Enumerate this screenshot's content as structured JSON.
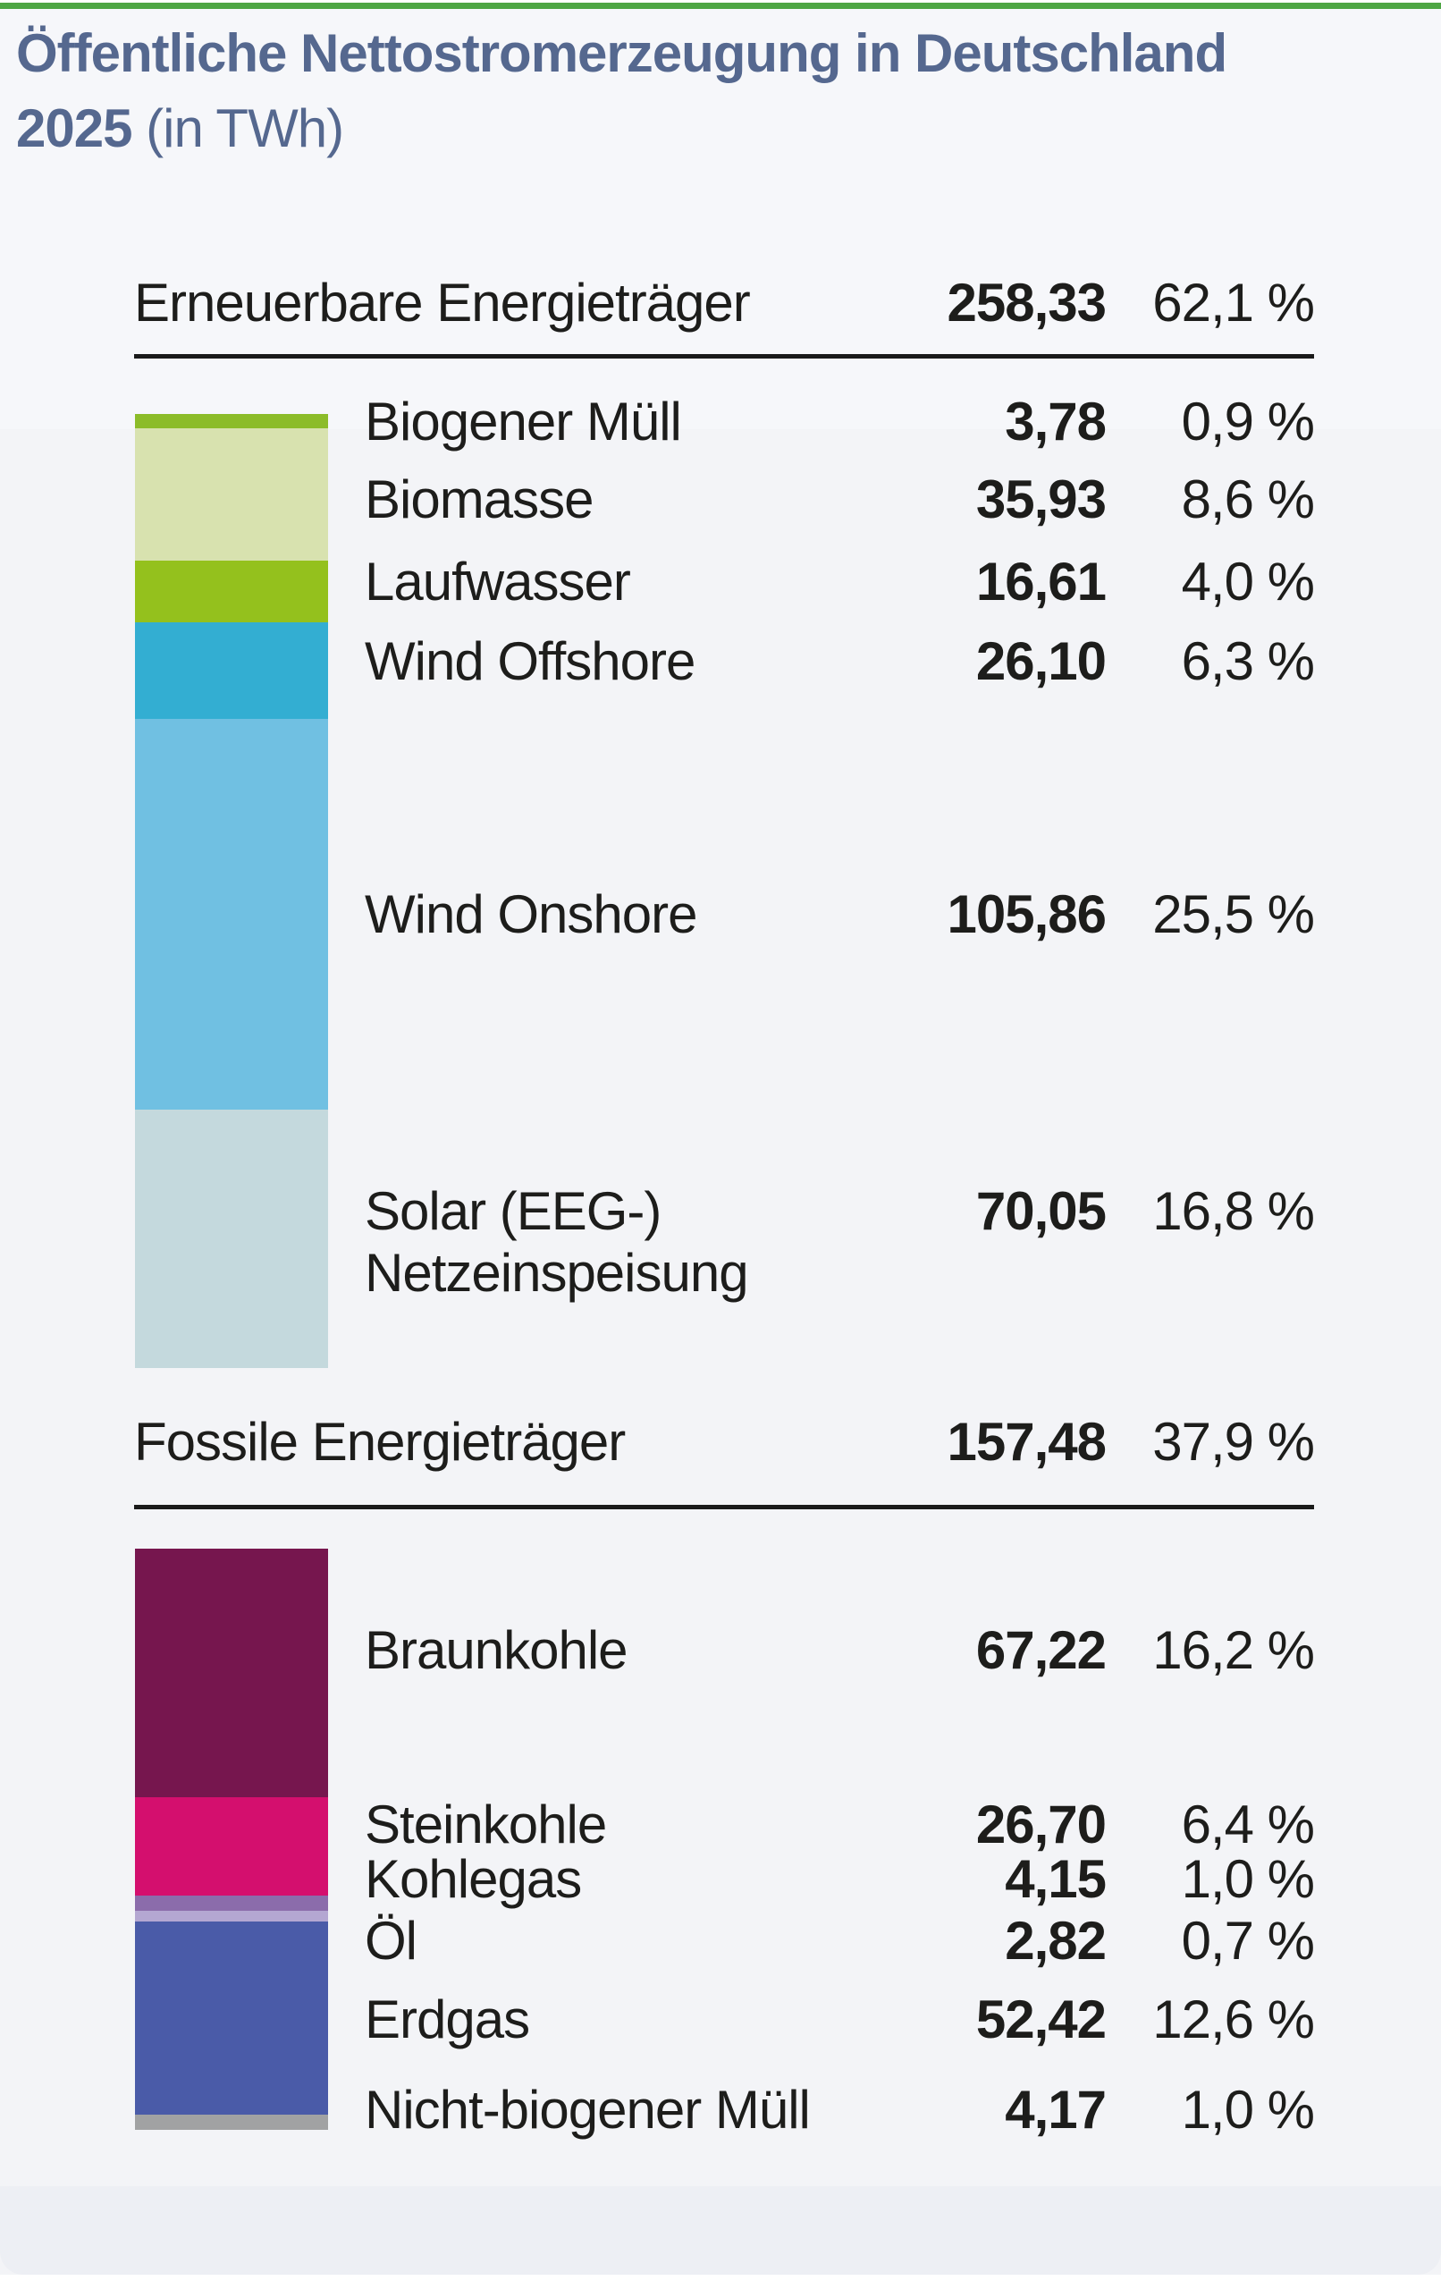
{
  "title": {
    "line1": "Öffentliche Nettostromerzeugung in Deutschland",
    "line2_bold": "2025",
    "line2_light": " (in TWh)"
  },
  "colors": {
    "accent_green": "#4ea644",
    "title_blue": "#55688f",
    "text": "#1d1d1b",
    "rule": "#1a1a1a",
    "card_background": "#f3f4f7"
  },
  "chart_data": {
    "type": "bar",
    "stacked": true,
    "orientation": "vertical-single-column",
    "unit": "TWh",
    "title": "Öffentliche Nettostromerzeugung in Deutschland 2025 (in TWh)",
    "groups": [
      {
        "label": "Erneuerbare Energieträger",
        "total_value": 258.33,
        "total_display": "258,33",
        "percent_display": "62,1 %",
        "items": [
          {
            "label": "Biogener Müll",
            "value": 3.78,
            "value_display": "3,78",
            "percent_display": "0,9 %",
            "color": "#8cbc29"
          },
          {
            "label": "Biomasse",
            "value": 35.93,
            "value_display": "35,93",
            "percent_display": "8,6 %",
            "color": "#d8e2af"
          },
          {
            "label": "Laufwasser",
            "value": 16.61,
            "value_display": "16,61",
            "percent_display": "4,0 %",
            "color": "#94c11d"
          },
          {
            "label": "Wind Offshore",
            "value": 26.1,
            "value_display": "26,10",
            "percent_display": "6,3 %",
            "color": "#33aed2"
          },
          {
            "label": "Wind Onshore",
            "value": 105.86,
            "value_display": "105,86",
            "percent_display": "25,5 %",
            "color": "#70c0e2"
          },
          {
            "label": "Solar (EEG-)",
            "label2": "Netzeinspeisung",
            "value": 70.05,
            "value_display": "70,05",
            "percent_display": "16,8 %",
            "color": "#c4d9dd"
          }
        ]
      },
      {
        "label": "Fossile Energieträger",
        "total_value": 157.48,
        "total_display": "157,48",
        "percent_display": "37,9 %",
        "items": [
          {
            "label": "Braunkohle",
            "value": 67.22,
            "value_display": "67,22",
            "percent_display": "16,2 %",
            "color": "#76164e"
          },
          {
            "label": "Steinkohle",
            "value": 26.7,
            "value_display": "26,70",
            "percent_display": "6,4 %",
            "color": "#d40f6e"
          },
          {
            "label": "Kohlegas",
            "value": 4.15,
            "value_display": "4,15",
            "percent_display": "1,0 %",
            "color": "#8b6cab"
          },
          {
            "label": "Öl",
            "value": 2.82,
            "value_display": "2,82",
            "percent_display": "0,7 %",
            "color": "#b4a7d2"
          },
          {
            "label": "Erdgas",
            "value": 52.42,
            "value_display": "52,42",
            "percent_display": "12,6 %",
            "color": "#4a5ba8"
          },
          {
            "label": "Nicht-biogener Müll",
            "value": 4.17,
            "value_display": "4,17",
            "percent_display": "1,0 %",
            "color": "#a1a2a3"
          }
        ]
      }
    ]
  }
}
